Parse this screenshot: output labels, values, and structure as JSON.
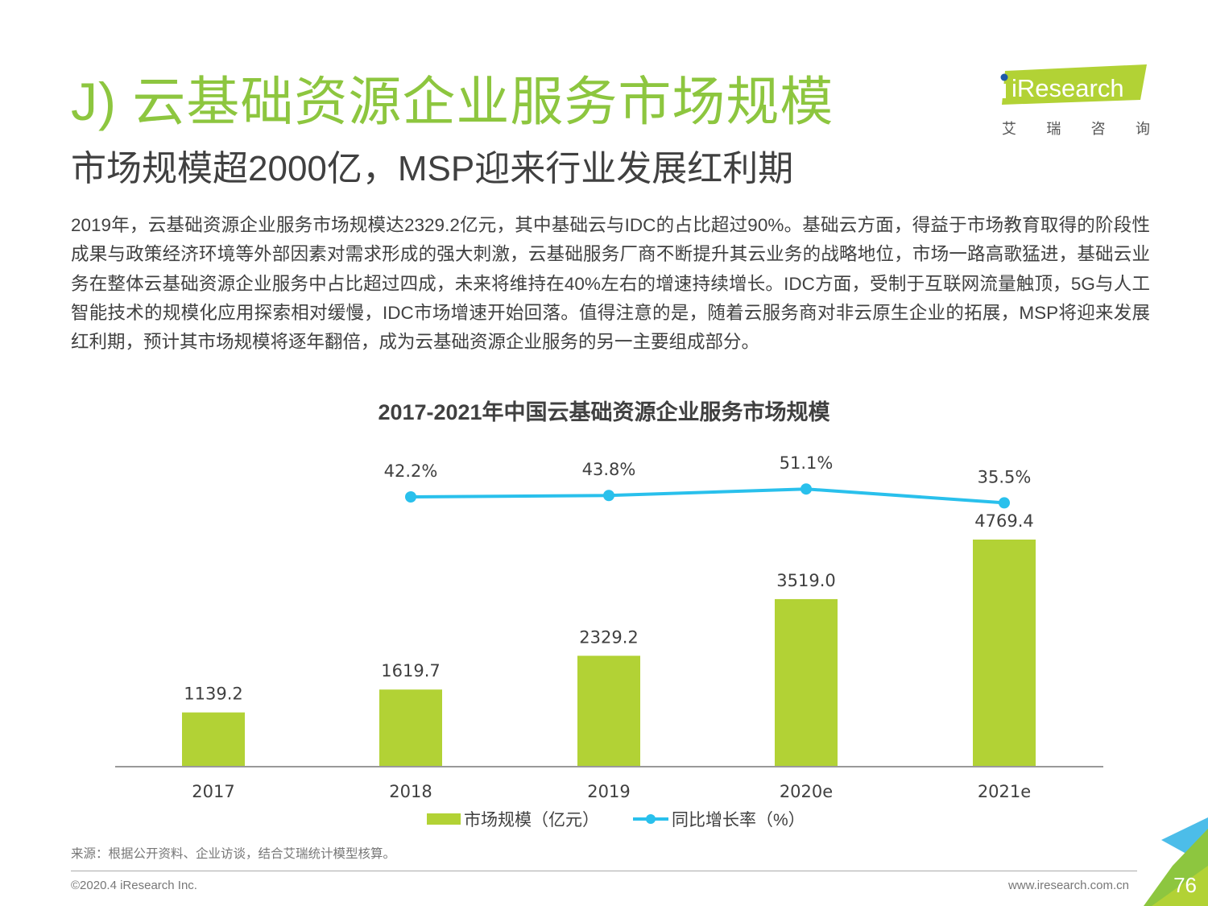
{
  "header": {
    "title": "J) 云基础资源企业服务市场规模",
    "subtitle": "市场规模超2000亿，MSP迎来行业发展红利期",
    "logo_text": "iResearch",
    "logo_cn": [
      "艾",
      "瑞",
      "咨",
      "询"
    ]
  },
  "body": {
    "paragraph": "2019年，云基础资源企业服务市场规模达2329.2亿元，其中基础云与IDC的占比超过90%。基础云方面，得益于市场教育取得的阶段性成果与政策经济环境等外部因素对需求形成的强大刺激，云基础服务厂商不断提升其云业务的战略地位，市场一路高歌猛进，基础云业务在整体云基础资源企业服务中占比超过四成，未来将维持在40%左右的增速持续增长。IDC方面，受制于互联网流量触顶，5G与人工智能技术的规模化应用探索相对缓慢，IDC市场增速开始回落。值得注意的是，随着云服务商对非云原生企业的拓展，MSP将迎来发展红利期，预计其市场规模将逐年翻倍，成为云基础资源企业服务的另一主要组成部分。"
  },
  "chart_data": {
    "type": "bar",
    "title": "2017-2021年中国云基础资源企业服务市场规模",
    "categories": [
      "2017",
      "2018",
      "2019",
      "2020e",
      "2021e"
    ],
    "series": [
      {
        "name": "市场规模（亿元）",
        "type": "bar",
        "color": "#b2d235",
        "values": [
          1139.2,
          1619.7,
          2329.2,
          3519.0,
          4769.4
        ],
        "labels": [
          "1139.2",
          "1619.7",
          "2329.2",
          "3519.0",
          "4769.4"
        ]
      },
      {
        "name": "同比增长率（%）",
        "type": "line",
        "color": "#29c0ec",
        "values": [
          null,
          42.2,
          43.8,
          51.1,
          35.5
        ],
        "labels": [
          "",
          "42.2%",
          "43.8%",
          "51.1%",
          "35.5%"
        ]
      }
    ],
    "xlabel": "",
    "ylabel": "",
    "ylim": [
      0,
      5000
    ],
    "grid": false,
    "legend": "bottom"
  },
  "footer": {
    "source": "来源：根据公开资料、企业访谈，结合艾瑞统计模型核算。",
    "copyright": "©2020.4 iResearch Inc.",
    "website": "www.iresearch.com.cn",
    "page_number": "76"
  }
}
